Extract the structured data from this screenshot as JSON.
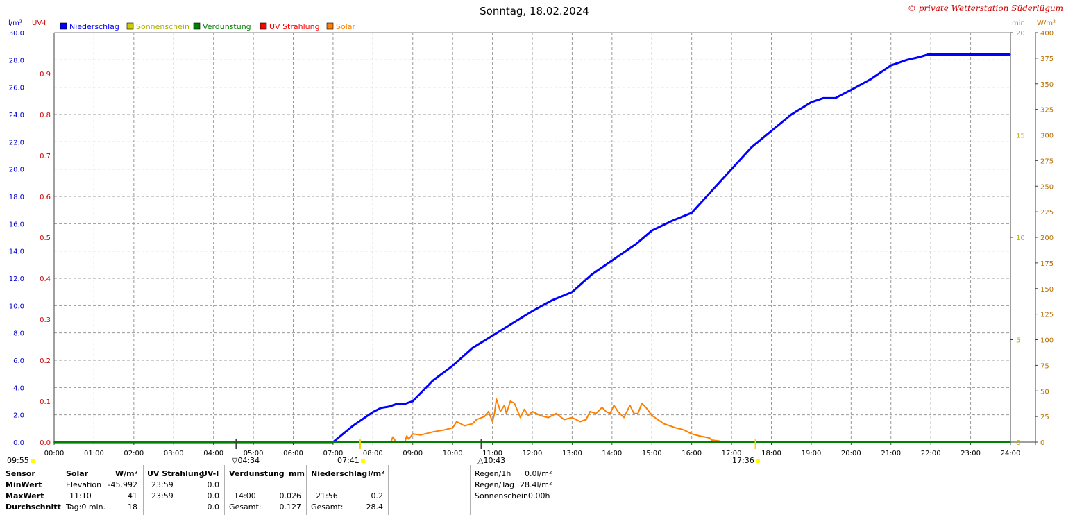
{
  "chart_data": {
    "type": "line",
    "title": "Sonntag, 18.02.2024",
    "copyright": "© private Wetterstation Süderlügum",
    "unit_left_outer": "l/m²",
    "unit_left_inner": "UV-I",
    "unit_right_inner": "min",
    "unit_right_outer": "W/m²",
    "legend": [
      {
        "label": "Niederschlag",
        "color": "#0000ff"
      },
      {
        "label": "Sonnenschein",
        "color": "#cccc00"
      },
      {
        "label": "Verdunstung",
        "color": "#008000"
      },
      {
        "label": "UV Strahlung",
        "color": "#ff0000"
      },
      {
        "label": "Solar",
        "color": "#ff8000"
      }
    ],
    "x_ticks": [
      "00:00",
      "01:00",
      "02:00",
      "03:00",
      "04:00",
      "05:00",
      "06:00",
      "07:00",
      "08:00",
      "09:00",
      "10:00",
      "11:00",
      "12:00",
      "13:00",
      "14:00",
      "15:00",
      "16:00",
      "17:00",
      "18:00",
      "19:00",
      "20:00",
      "21:00",
      "22:00",
      "23:00",
      "24:00"
    ],
    "y_left_ticks": [
      "0.0",
      "2.0",
      "4.0",
      "6.0",
      "8.0",
      "10.0",
      "12.0",
      "14.0",
      "16.0",
      "18.0",
      "20.0",
      "22.0",
      "24.0",
      "26.0",
      "28.0",
      "30.0"
    ],
    "y_uv_ticks": [
      "0.0",
      "0.1",
      "0.2",
      "0.3",
      "0.4",
      "0.5",
      "0.6",
      "0.7",
      "0.8",
      "0.9"
    ],
    "y_min_ticks": [
      "0",
      "5",
      "10",
      "15",
      "20"
    ],
    "y_solar_ticks": [
      "0",
      "25",
      "50",
      "75",
      "100",
      "125",
      "150",
      "175",
      "200",
      "225",
      "250",
      "275",
      "300",
      "325",
      "350",
      "375",
      "400"
    ],
    "ylim_left": [
      0,
      30
    ],
    "ylim_uv": [
      0,
      1.0
    ],
    "ylim_min": [
      0,
      20
    ],
    "ylim_solar": [
      0,
      400
    ],
    "series": [
      {
        "name": "Niederschlag",
        "axis": "left",
        "color": "#0000ff",
        "x": [
          0,
          7.0,
          7.5,
          8.0,
          8.2,
          8.4,
          8.6,
          8.8,
          9.0,
          9.5,
          10.0,
          10.5,
          11.0,
          11.5,
          12.0,
          12.5,
          13.0,
          13.5,
          14.0,
          14.6,
          15.0,
          15.5,
          16.0,
          16.5,
          17.0,
          17.5,
          18.0,
          18.5,
          19.0,
          19.3,
          19.6,
          20.0,
          20.5,
          21.0,
          21.4,
          21.7,
          21.93,
          24.0
        ],
        "y": [
          0,
          0,
          1.2,
          2.2,
          2.5,
          2.6,
          2.8,
          2.8,
          3.0,
          4.5,
          5.6,
          6.9,
          7.8,
          8.7,
          9.6,
          10.4,
          11.0,
          12.3,
          13.3,
          14.5,
          15.5,
          16.2,
          16.8,
          18.4,
          20.0,
          21.6,
          22.8,
          24.0,
          24.9,
          25.2,
          25.2,
          25.8,
          26.6,
          27.6,
          28.0,
          28.2,
          28.4,
          28.4
        ]
      },
      {
        "name": "Solar",
        "axis": "solar",
        "color": "#ff8000",
        "x": [
          8.45,
          8.5,
          8.55,
          8.6,
          8.8,
          8.85,
          8.9,
          9.0,
          9.2,
          9.5,
          9.8,
          10.0,
          10.1,
          10.3,
          10.5,
          10.6,
          10.8,
          10.9,
          11.0,
          11.05,
          11.1,
          11.2,
          11.3,
          11.35,
          11.45,
          11.55,
          11.7,
          11.8,
          11.9,
          12.0,
          12.2,
          12.4,
          12.6,
          12.8,
          13.0,
          13.2,
          13.35,
          13.45,
          13.6,
          13.75,
          13.85,
          13.95,
          14.05,
          14.15,
          14.3,
          14.45,
          14.55,
          14.65,
          14.75,
          14.85,
          15.0,
          15.3,
          15.6,
          15.8,
          16.0,
          16.2,
          16.45,
          16.5,
          16.7,
          16.75
        ],
        "y": [
          0,
          5,
          2,
          0,
          0,
          6,
          3,
          8,
          7,
          10,
          12,
          14,
          20,
          16,
          18,
          22,
          25,
          30,
          20,
          28,
          42,
          30,
          36,
          28,
          40,
          38,
          24,
          32,
          26,
          30,
          26,
          24,
          28,
          22,
          24,
          20,
          22,
          30,
          28,
          34,
          30,
          28,
          36,
          30,
          24,
          36,
          28,
          28,
          38,
          34,
          26,
          18,
          14,
          12,
          8,
          6,
          4,
          2,
          1,
          0
        ]
      },
      {
        "name": "Verdunstung",
        "axis": "left",
        "color": "#008000",
        "x": [
          0,
          24
        ],
        "y": [
          0,
          0
        ]
      }
    ],
    "markers": [
      {
        "label": "09:55",
        "pos": 0
      },
      {
        "label": "04:34",
        "hour": 4.57
      },
      {
        "label": "07:41",
        "hour": 7.68
      },
      {
        "label": "10:43",
        "hour": 10.72
      },
      {
        "label": "17:36",
        "hour": 17.6
      }
    ]
  },
  "table": {
    "col_sensor": {
      "header": "Sensor",
      "rows": [
        "MinWert",
        "MaxWert",
        "Durchschnitt"
      ]
    },
    "solar": {
      "header": "Solar",
      "unit": "W/m²",
      "r1a": "Elevation",
      "r1b": "-45.992",
      "r2a": "11:10",
      "r2b": "41",
      "r3a": "Tag:0 min.",
      "r3b": "18"
    },
    "uv": {
      "header": "UV Strahlung",
      "unit": "UV-I",
      "r1a": "23:59",
      "r1b": "0.0",
      "r2a": "23:59",
      "r2b": "0.0",
      "r3b": "0.0"
    },
    "verd": {
      "header": "Verdunstung",
      "unit": "mm",
      "r2a": "14:00",
      "r2b": "0.026",
      "r3a": "Gesamt:",
      "r3b": "0.127"
    },
    "nied": {
      "header": "Niederschlag",
      "unit": "l/m²",
      "r2a": "21:56",
      "r2b": "0.2",
      "r3a": "Gesamt:",
      "r3b": "28.4"
    },
    "extra": {
      "l1a": "Regen/1h",
      "l1b": "0.0l/m²",
      "l2a": "Regen/Tag",
      "l2b": "28.4l/m²",
      "l3a": "Sonnenschein",
      "l3b": "0.00h"
    }
  }
}
